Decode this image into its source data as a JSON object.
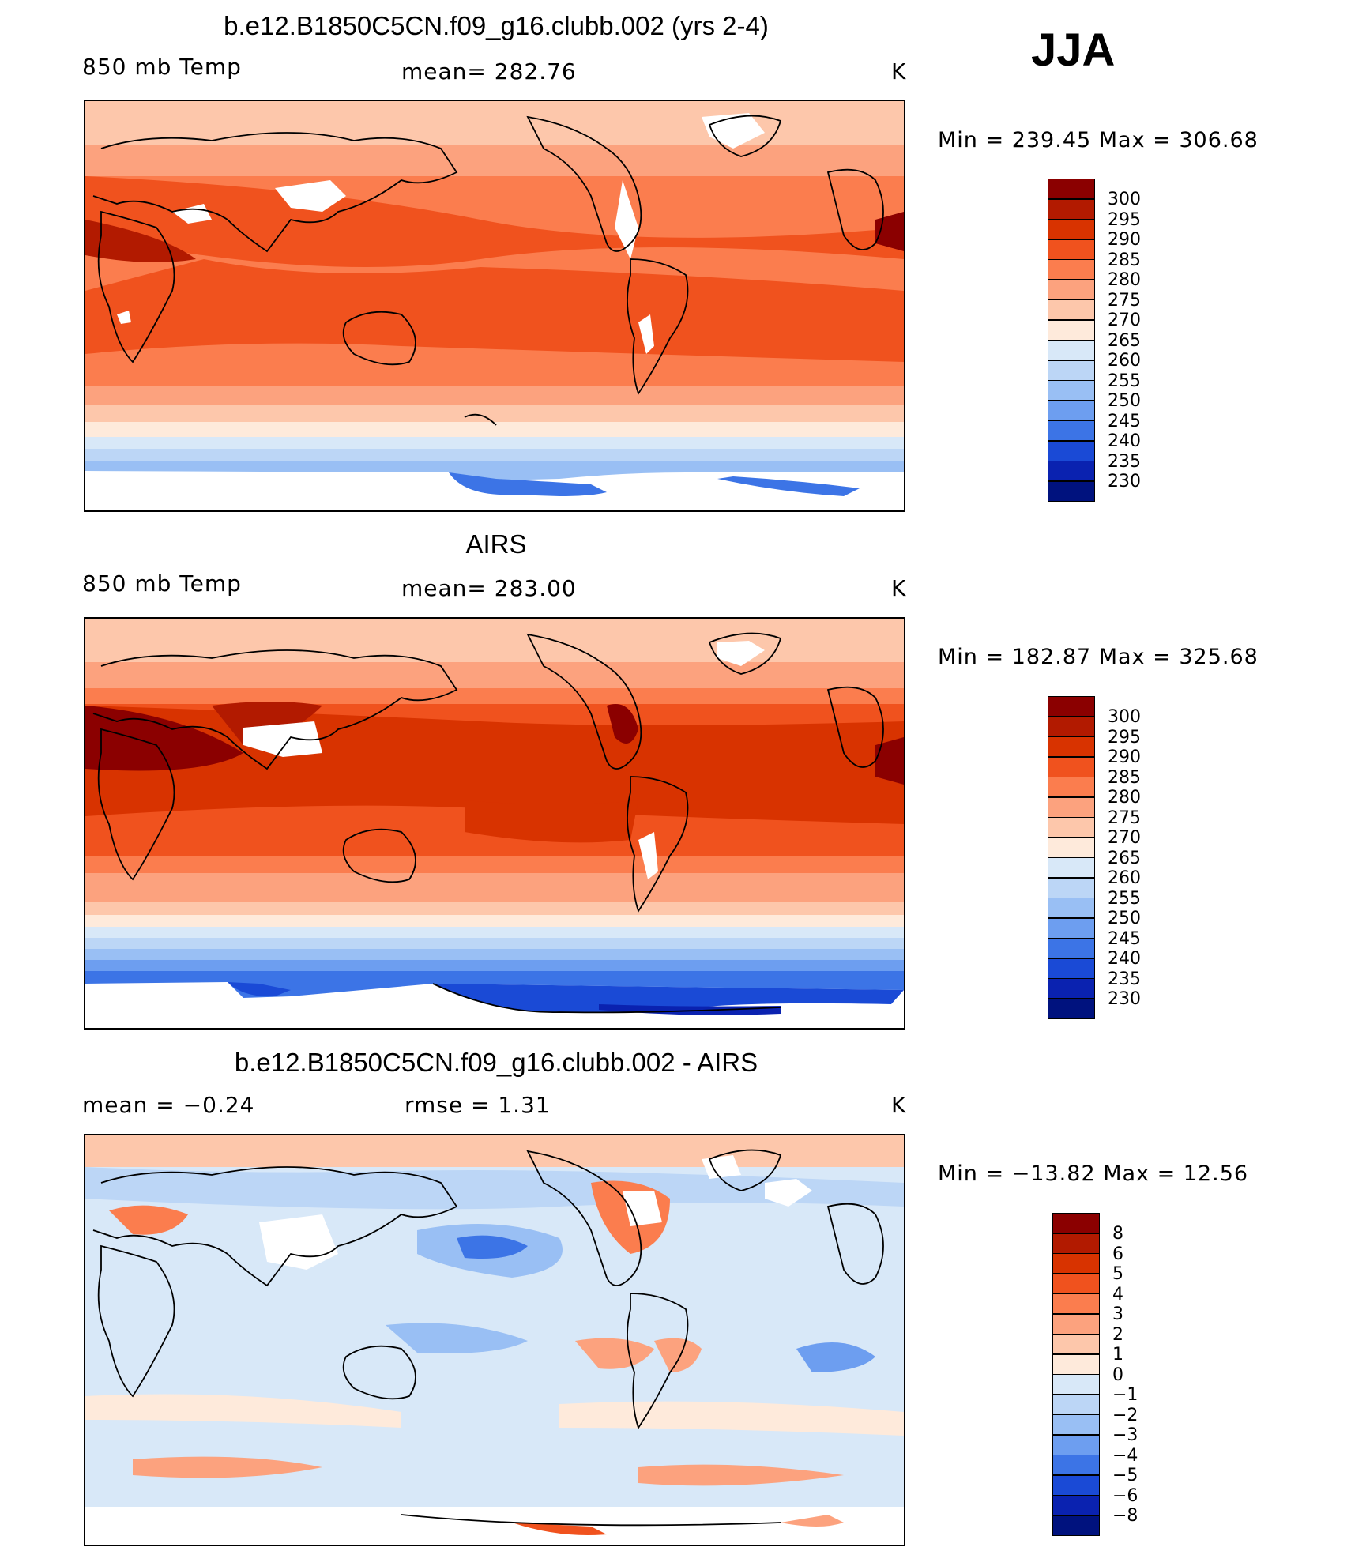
{
  "season": "JJA",
  "panels": [
    {
      "title": "b.e12.B1850C5CN.f09_g16.clubb.002 (yrs 2-4)",
      "left_label": "850  mb  Temp",
      "center_label": "mean=  282.76",
      "units": "K",
      "minmax": "Min  =  239.45  Max  =  306.68",
      "colorbar": {
        "labels": [
          "300",
          "295",
          "290",
          "285",
          "280",
          "275",
          "270",
          "265",
          "260",
          "255",
          "250",
          "245",
          "240",
          "235",
          "230"
        ],
        "colors": [
          "#8b0000",
          "#b21a00",
          "#d83300",
          "#f0521e",
          "#fb7d4e",
          "#fca27e",
          "#fdc7ab",
          "#feeadb",
          "#d8e8f8",
          "#bcd6f6",
          "#99bff4",
          "#6d9ef0",
          "#3c74e6",
          "#1a4ad6",
          "#0a22b0",
          "#00127e"
        ]
      }
    },
    {
      "title": "AIRS",
      "left_label": "850  mb  Temp",
      "center_label": "mean=  283.00",
      "units": "K",
      "minmax": "Min  =  182.87  Max  =  325.68",
      "colorbar": {
        "labels": [
          "300",
          "295",
          "290",
          "285",
          "280",
          "275",
          "270",
          "265",
          "260",
          "255",
          "250",
          "245",
          "240",
          "235",
          "230"
        ],
        "colors": [
          "#8b0000",
          "#b21a00",
          "#d83300",
          "#f0521e",
          "#fb7d4e",
          "#fca27e",
          "#fdc7ab",
          "#feeadb",
          "#d8e8f8",
          "#bcd6f6",
          "#99bff4",
          "#6d9ef0",
          "#3c74e6",
          "#1a4ad6",
          "#0a22b0",
          "#00127e"
        ]
      }
    },
    {
      "title": "b.e12.B1850C5CN.f09_g16.clubb.002 - AIRS",
      "left_label": "mean  =    −0.24",
      "center_label": "rmse  =     1.31",
      "units": "K",
      "minmax": "Min  =  −13.82  Max  =    12.56",
      "colorbar": {
        "labels": [
          "8",
          "6",
          "5",
          "4",
          "3",
          "2",
          "1",
          "0",
          "−1",
          "−2",
          "−3",
          "−4",
          "−5",
          "−6",
          "−8"
        ],
        "colors": [
          "#8b0000",
          "#b21a00",
          "#d83300",
          "#f0521e",
          "#fb7d4e",
          "#fca27e",
          "#fdc7ab",
          "#feeadb",
          "#d8e8f8",
          "#bcd6f6",
          "#99bff4",
          "#6d9ef0",
          "#3c74e6",
          "#1a4ad6",
          "#0a22b0",
          "#00127e"
        ]
      }
    }
  ]
}
